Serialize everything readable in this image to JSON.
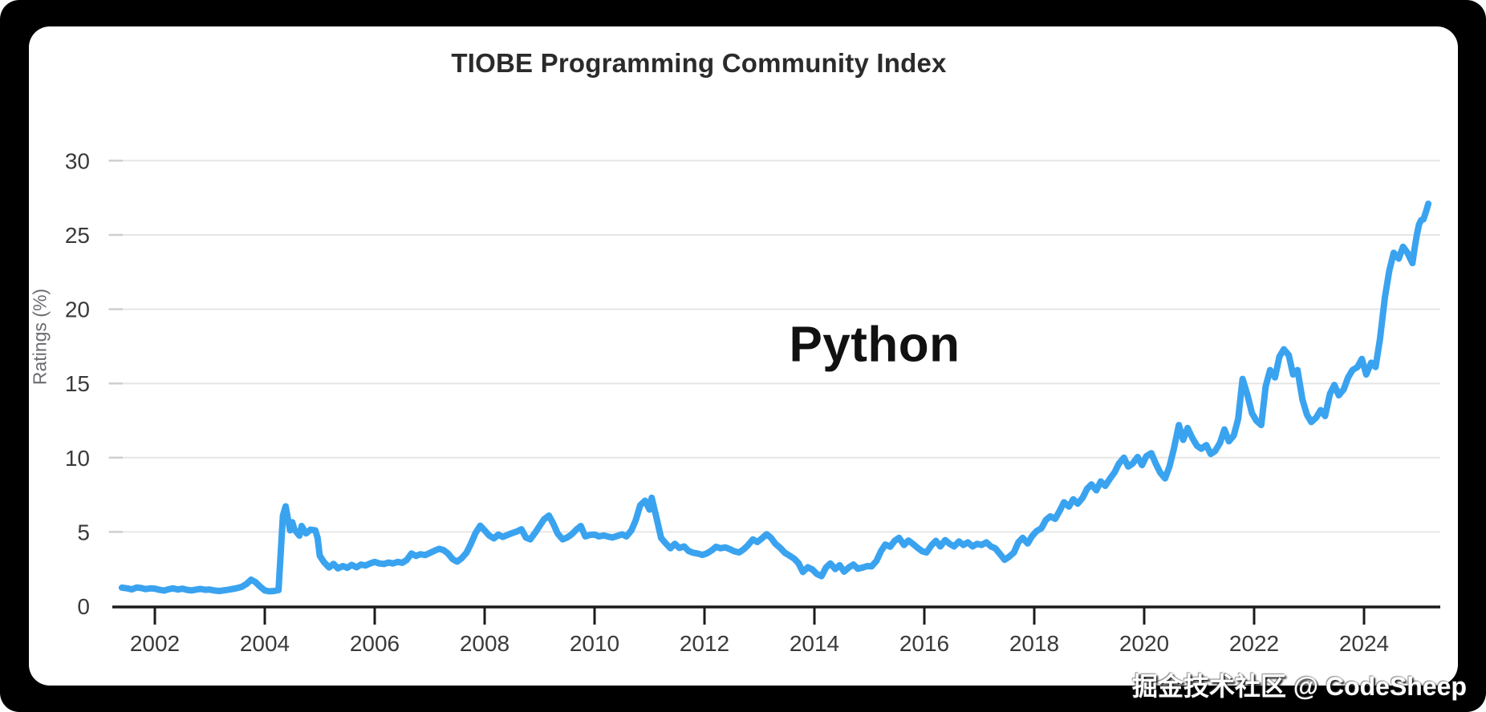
{
  "frame": {
    "watermark": "掘金技术社区 @ CodeSheep"
  },
  "colors": {
    "frame_bg": "#000000",
    "card_bg": "#ffffff",
    "line_blue": "#3aa3f0",
    "grid_gray": "#e6e6e6",
    "axis_dark": "#1b1b1b",
    "label_gray": "#3a3a3c",
    "title_dark": "#2b2b2b"
  },
  "chart_data": {
    "type": "line",
    "title": "TIOBE Programming Community Index",
    "xlabel": "",
    "ylabel": "Ratings (%)",
    "legend": "none",
    "grid": "horizontal-only",
    "annotation": {
      "text": "Python"
    },
    "xlim": [
      2001.3,
      2025.45
    ],
    "ylim": [
      0,
      32
    ],
    "x_axis": {
      "tick_years": [
        2002,
        2004,
        2006,
        2008,
        2010,
        2012,
        2014,
        2016,
        2018,
        2020,
        2022,
        2024
      ],
      "tick_labels": [
        "2002",
        "2004",
        "2006",
        "2008",
        "2010",
        "2012",
        "2014",
        "2016",
        "2018",
        "2020",
        "2022",
        "2024"
      ]
    },
    "y_axis": {
      "tick_values": [
        30,
        25,
        20,
        15,
        10,
        5,
        0
      ],
      "tick_labels": [
        "30",
        "25",
        "20",
        "15",
        "10",
        "5",
        "0"
      ],
      "gridline_values": [
        30,
        25,
        20,
        15,
        10,
        5
      ]
    },
    "series": [
      {
        "name": "Python",
        "color": "#3aa3f0",
        "points": [
          [
            2001.4,
            1.25
          ],
          [
            2001.5,
            1.2
          ],
          [
            2001.58,
            1.13
          ],
          [
            2001.67,
            1.26
          ],
          [
            2001.75,
            1.22
          ],
          [
            2001.83,
            1.15
          ],
          [
            2001.92,
            1.2
          ],
          [
            2002.0,
            1.18
          ],
          [
            2002.08,
            1.1
          ],
          [
            2002.17,
            1.05
          ],
          [
            2002.25,
            1.14
          ],
          [
            2002.33,
            1.2
          ],
          [
            2002.42,
            1.12
          ],
          [
            2002.5,
            1.18
          ],
          [
            2002.58,
            1.1
          ],
          [
            2002.67,
            1.06
          ],
          [
            2002.75,
            1.12
          ],
          [
            2002.83,
            1.16
          ],
          [
            2002.92,
            1.1
          ],
          [
            2003.0,
            1.12
          ],
          [
            2003.08,
            1.06
          ],
          [
            2003.17,
            1.02
          ],
          [
            2003.25,
            1.06
          ],
          [
            2003.33,
            1.1
          ],
          [
            2003.42,
            1.16
          ],
          [
            2003.5,
            1.22
          ],
          [
            2003.58,
            1.3
          ],
          [
            2003.67,
            1.5
          ],
          [
            2003.75,
            1.78
          ],
          [
            2003.83,
            1.62
          ],
          [
            2003.92,
            1.3
          ],
          [
            2004.0,
            1.06
          ],
          [
            2004.08,
            1.0
          ],
          [
            2004.17,
            1.02
          ],
          [
            2004.25,
            1.08
          ],
          [
            2004.33,
            6.1
          ],
          [
            2004.38,
            6.72
          ],
          [
            2004.46,
            5.1
          ],
          [
            2004.5,
            5.65
          ],
          [
            2004.54,
            5.15
          ],
          [
            2004.63,
            4.75
          ],
          [
            2004.67,
            5.4
          ],
          [
            2004.75,
            4.9
          ],
          [
            2004.83,
            5.15
          ],
          [
            2004.92,
            5.1
          ],
          [
            2004.96,
            4.6
          ],
          [
            2005.0,
            3.4
          ],
          [
            2005.08,
            2.95
          ],
          [
            2005.17,
            2.6
          ],
          [
            2005.25,
            2.85
          ],
          [
            2005.33,
            2.55
          ],
          [
            2005.42,
            2.7
          ],
          [
            2005.5,
            2.58
          ],
          [
            2005.58,
            2.78
          ],
          [
            2005.67,
            2.62
          ],
          [
            2005.75,
            2.8
          ],
          [
            2005.83,
            2.74
          ],
          [
            2005.92,
            2.88
          ],
          [
            2006.0,
            2.98
          ],
          [
            2006.08,
            2.88
          ],
          [
            2006.17,
            2.84
          ],
          [
            2006.25,
            2.94
          ],
          [
            2006.33,
            2.88
          ],
          [
            2006.42,
            2.98
          ],
          [
            2006.5,
            2.92
          ],
          [
            2006.58,
            3.1
          ],
          [
            2006.67,
            3.55
          ],
          [
            2006.75,
            3.38
          ],
          [
            2006.83,
            3.5
          ],
          [
            2006.92,
            3.44
          ],
          [
            2007.0,
            3.58
          ],
          [
            2007.08,
            3.72
          ],
          [
            2007.17,
            3.86
          ],
          [
            2007.25,
            3.78
          ],
          [
            2007.33,
            3.56
          ],
          [
            2007.42,
            3.16
          ],
          [
            2007.5,
            3.0
          ],
          [
            2007.58,
            3.22
          ],
          [
            2007.67,
            3.6
          ],
          [
            2007.75,
            4.2
          ],
          [
            2007.83,
            4.9
          ],
          [
            2007.92,
            5.42
          ],
          [
            2008.0,
            5.1
          ],
          [
            2008.08,
            4.76
          ],
          [
            2008.17,
            4.56
          ],
          [
            2008.25,
            4.82
          ],
          [
            2008.33,
            4.66
          ],
          [
            2008.42,
            4.8
          ],
          [
            2008.5,
            4.92
          ],
          [
            2008.58,
            5.02
          ],
          [
            2008.67,
            5.18
          ],
          [
            2008.75,
            4.62
          ],
          [
            2008.83,
            4.5
          ],
          [
            2008.92,
            4.95
          ],
          [
            2009.0,
            5.4
          ],
          [
            2009.08,
            5.85
          ],
          [
            2009.17,
            6.1
          ],
          [
            2009.25,
            5.55
          ],
          [
            2009.33,
            4.88
          ],
          [
            2009.42,
            4.5
          ],
          [
            2009.5,
            4.62
          ],
          [
            2009.58,
            4.82
          ],
          [
            2009.67,
            5.16
          ],
          [
            2009.75,
            5.4
          ],
          [
            2009.83,
            4.7
          ],
          [
            2009.92,
            4.8
          ],
          [
            2010.0,
            4.82
          ],
          [
            2010.08,
            4.7
          ],
          [
            2010.17,
            4.76
          ],
          [
            2010.25,
            4.68
          ],
          [
            2010.33,
            4.62
          ],
          [
            2010.42,
            4.74
          ],
          [
            2010.5,
            4.84
          ],
          [
            2010.58,
            4.7
          ],
          [
            2010.67,
            5.1
          ],
          [
            2010.75,
            5.8
          ],
          [
            2010.83,
            6.8
          ],
          [
            2010.92,
            7.1
          ],
          [
            2011.0,
            6.5
          ],
          [
            2011.04,
            7.3
          ],
          [
            2011.13,
            5.9
          ],
          [
            2011.21,
            4.6
          ],
          [
            2011.29,
            4.25
          ],
          [
            2011.38,
            3.9
          ],
          [
            2011.46,
            4.2
          ],
          [
            2011.54,
            3.92
          ],
          [
            2011.63,
            4.02
          ],
          [
            2011.71,
            3.72
          ],
          [
            2011.79,
            3.6
          ],
          [
            2011.88,
            3.54
          ],
          [
            2011.96,
            3.45
          ],
          [
            2012.04,
            3.55
          ],
          [
            2012.13,
            3.75
          ],
          [
            2012.21,
            4.0
          ],
          [
            2012.29,
            3.9
          ],
          [
            2012.38,
            3.96
          ],
          [
            2012.46,
            3.84
          ],
          [
            2012.54,
            3.7
          ],
          [
            2012.63,
            3.62
          ],
          [
            2012.71,
            3.82
          ],
          [
            2012.79,
            4.1
          ],
          [
            2012.88,
            4.5
          ],
          [
            2012.96,
            4.32
          ],
          [
            2013.04,
            4.55
          ],
          [
            2013.13,
            4.85
          ],
          [
            2013.21,
            4.6
          ],
          [
            2013.29,
            4.2
          ],
          [
            2013.38,
            3.92
          ],
          [
            2013.46,
            3.6
          ],
          [
            2013.54,
            3.42
          ],
          [
            2013.63,
            3.2
          ],
          [
            2013.71,
            2.9
          ],
          [
            2013.79,
            2.3
          ],
          [
            2013.88,
            2.62
          ],
          [
            2013.96,
            2.48
          ],
          [
            2014.04,
            2.18
          ],
          [
            2014.13,
            2.02
          ],
          [
            2014.21,
            2.6
          ],
          [
            2014.29,
            2.88
          ],
          [
            2014.38,
            2.5
          ],
          [
            2014.46,
            2.76
          ],
          [
            2014.54,
            2.32
          ],
          [
            2014.63,
            2.62
          ],
          [
            2014.71,
            2.8
          ],
          [
            2014.79,
            2.52
          ],
          [
            2014.88,
            2.6
          ],
          [
            2014.96,
            2.7
          ],
          [
            2015.04,
            2.68
          ],
          [
            2015.13,
            3.05
          ],
          [
            2015.21,
            3.7
          ],
          [
            2015.29,
            4.15
          ],
          [
            2015.38,
            4.0
          ],
          [
            2015.46,
            4.4
          ],
          [
            2015.54,
            4.6
          ],
          [
            2015.63,
            4.12
          ],
          [
            2015.71,
            4.42
          ],
          [
            2015.79,
            4.2
          ],
          [
            2015.88,
            3.92
          ],
          [
            2015.96,
            3.7
          ],
          [
            2016.04,
            3.62
          ],
          [
            2016.13,
            4.1
          ],
          [
            2016.21,
            4.4
          ],
          [
            2016.29,
            4.02
          ],
          [
            2016.38,
            4.45
          ],
          [
            2016.46,
            4.2
          ],
          [
            2016.54,
            4.02
          ],
          [
            2016.63,
            4.36
          ],
          [
            2016.71,
            4.12
          ],
          [
            2016.79,
            4.3
          ],
          [
            2016.88,
            4.02
          ],
          [
            2016.96,
            4.2
          ],
          [
            2017.04,
            4.12
          ],
          [
            2017.13,
            4.3
          ],
          [
            2017.21,
            4.02
          ],
          [
            2017.29,
            3.9
          ],
          [
            2017.38,
            3.5
          ],
          [
            2017.46,
            3.12
          ],
          [
            2017.54,
            3.32
          ],
          [
            2017.63,
            3.62
          ],
          [
            2017.71,
            4.3
          ],
          [
            2017.79,
            4.6
          ],
          [
            2017.88,
            4.22
          ],
          [
            2017.96,
            4.72
          ],
          [
            2018.04,
            5.05
          ],
          [
            2018.13,
            5.25
          ],
          [
            2018.21,
            5.8
          ],
          [
            2018.29,
            6.05
          ],
          [
            2018.38,
            5.88
          ],
          [
            2018.46,
            6.4
          ],
          [
            2018.54,
            7.0
          ],
          [
            2018.63,
            6.7
          ],
          [
            2018.71,
            7.2
          ],
          [
            2018.79,
            6.9
          ],
          [
            2018.88,
            7.3
          ],
          [
            2018.96,
            7.9
          ],
          [
            2019.04,
            8.2
          ],
          [
            2019.13,
            7.8
          ],
          [
            2019.21,
            8.4
          ],
          [
            2019.29,
            8.1
          ],
          [
            2019.38,
            8.6
          ],
          [
            2019.46,
            9.0
          ],
          [
            2019.54,
            9.6
          ],
          [
            2019.63,
            10.0
          ],
          [
            2019.71,
            9.4
          ],
          [
            2019.79,
            9.6
          ],
          [
            2019.88,
            10.05
          ],
          [
            2019.96,
            9.5
          ],
          [
            2020.04,
            10.1
          ],
          [
            2020.13,
            10.3
          ],
          [
            2020.21,
            9.6
          ],
          [
            2020.29,
            9.0
          ],
          [
            2020.38,
            8.6
          ],
          [
            2020.46,
            9.4
          ],
          [
            2020.54,
            10.6
          ],
          [
            2020.63,
            12.2
          ],
          [
            2020.71,
            11.2
          ],
          [
            2020.79,
            12.0
          ],
          [
            2020.88,
            11.3
          ],
          [
            2020.96,
            10.8
          ],
          [
            2021.04,
            10.6
          ],
          [
            2021.13,
            10.85
          ],
          [
            2021.21,
            10.25
          ],
          [
            2021.29,
            10.45
          ],
          [
            2021.38,
            11.0
          ],
          [
            2021.46,
            11.9
          ],
          [
            2021.54,
            11.1
          ],
          [
            2021.63,
            11.5
          ],
          [
            2021.71,
            12.6
          ],
          [
            2021.79,
            15.3
          ],
          [
            2021.88,
            14.2
          ],
          [
            2021.96,
            13.0
          ],
          [
            2022.04,
            12.5
          ],
          [
            2022.13,
            12.2
          ],
          [
            2022.21,
            14.8
          ],
          [
            2022.29,
            15.9
          ],
          [
            2022.38,
            15.4
          ],
          [
            2022.46,
            16.8
          ],
          [
            2022.54,
            17.3
          ],
          [
            2022.63,
            16.9
          ],
          [
            2022.71,
            15.6
          ],
          [
            2022.79,
            15.9
          ],
          [
            2022.88,
            13.9
          ],
          [
            2022.96,
            12.9
          ],
          [
            2023.04,
            12.4
          ],
          [
            2023.13,
            12.7
          ],
          [
            2023.21,
            13.2
          ],
          [
            2023.29,
            12.8
          ],
          [
            2023.38,
            14.3
          ],
          [
            2023.46,
            14.9
          ],
          [
            2023.54,
            14.2
          ],
          [
            2023.63,
            14.6
          ],
          [
            2023.71,
            15.4
          ],
          [
            2023.79,
            15.9
          ],
          [
            2023.88,
            16.1
          ],
          [
            2023.96,
            16.65
          ],
          [
            2024.04,
            15.6
          ],
          [
            2024.13,
            16.4
          ],
          [
            2024.21,
            16.1
          ],
          [
            2024.29,
            18.0
          ],
          [
            2024.38,
            20.8
          ],
          [
            2024.46,
            22.6
          ],
          [
            2024.54,
            23.8
          ],
          [
            2024.63,
            23.4
          ],
          [
            2024.71,
            24.2
          ],
          [
            2024.79,
            23.8
          ],
          [
            2024.88,
            23.1
          ],
          [
            2024.92,
            24.1
          ],
          [
            2024.96,
            25.0
          ],
          [
            2025.0,
            25.7
          ],
          [
            2025.04,
            26.0
          ],
          [
            2025.08,
            26.05
          ],
          [
            2025.13,
            26.6
          ],
          [
            2025.17,
            27.1
          ]
        ]
      }
    ]
  }
}
